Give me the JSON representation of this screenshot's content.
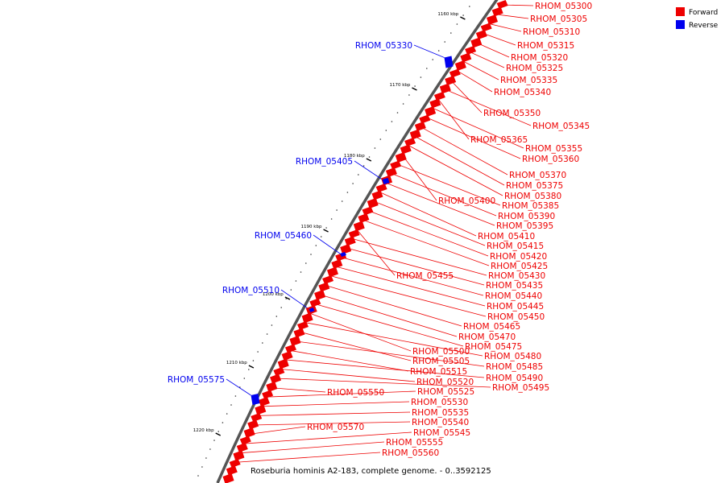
{
  "caption": "Roseburia hominis A2-183, complete genome. - 0..3592125",
  "legend": [
    {
      "label": "Forward",
      "color": "#ee0000"
    },
    {
      "label": "Reverse",
      "color": "#0000ee"
    }
  ],
  "ticks": [
    "1160 kbp",
    "1170 kbp",
    "1180 kbp",
    "1190 kbp",
    "1200 kbp",
    "1210 kbp",
    "1220 kbp"
  ],
  "genes_forward": [
    "RHOM_05300",
    "RHOM_05305",
    "RHOM_05310",
    "RHOM_05315",
    "RHOM_05320",
    "RHOM_05325",
    "RHOM_05335",
    "RHOM_05340",
    "RHOM_05350",
    "RHOM_05345",
    "RHOM_05365",
    "RHOM_05355",
    "RHOM_05360",
    "RHOM_05370",
    "RHOM_05375",
    "RHOM_05380",
    "RHOM_05400",
    "RHOM_05385",
    "RHOM_05390",
    "RHOM_05395",
    "RHOM_05410",
    "RHOM_05415",
    "RHOM_05420",
    "RHOM_05425",
    "RHOM_05455",
    "RHOM_05430",
    "RHOM_05435",
    "RHOM_05440",
    "RHOM_05445",
    "RHOM_05450",
    "RHOM_05465",
    "RHOM_05470",
    "RHOM_05475",
    "RHOM_05500",
    "RHOM_05480",
    "RHOM_05505",
    "RHOM_05485",
    "RHOM_05515",
    "RHOM_05490",
    "RHOM_05520",
    "RHOM_05495",
    "RHOM_05550",
    "RHOM_05525",
    "RHOM_05530",
    "RHOM_05535",
    "RHOM_05540",
    "RHOM_05570",
    "RHOM_05545",
    "RHOM_05555",
    "RHOM_05560"
  ],
  "genes_reverse": [
    "RHOM_05330",
    "RHOM_05405",
    "RHOM_05460",
    "RHOM_05510",
    "RHOM_05575"
  ]
}
